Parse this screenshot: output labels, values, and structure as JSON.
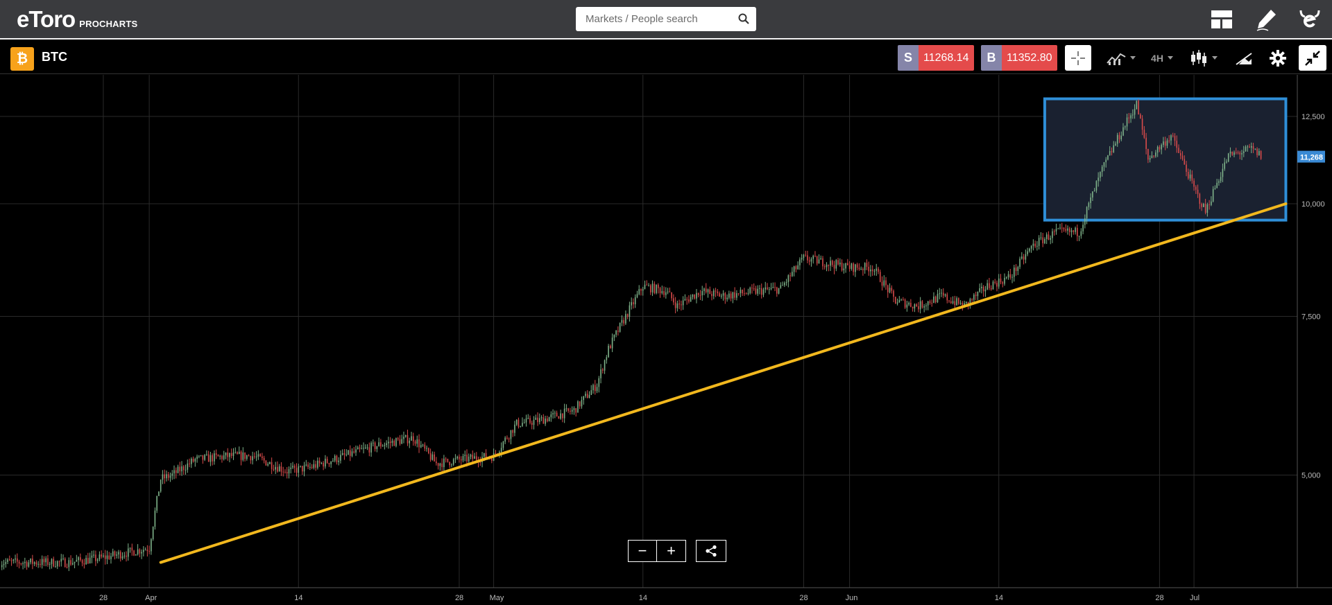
{
  "header": {
    "brand": "eToro",
    "sub": "PROCHARTS",
    "search_placeholder": "Markets / People search",
    "icons": [
      "layout-icon",
      "pencil-icon",
      "etoro-icon"
    ]
  },
  "toolbar": {
    "asset_symbol": "₿",
    "asset": "BTC",
    "sell_tag": "S",
    "sell_price": "11268.14",
    "buy_tag": "B",
    "buy_price": "11352.80",
    "timeframe": "4H",
    "icons": [
      "crosshair-icon",
      "indicators-icon",
      "candles-icon",
      "drawing-tool-icon",
      "gear-icon",
      "collapse-icon"
    ]
  },
  "colors": {
    "trendline": "#f2b81e",
    "highlight_box": "#2f8fd8",
    "up_candle": "#7fb38a",
    "down_candle": "#d84b4b",
    "price_label": "#3a8ad4",
    "grid": "#2a2a2a",
    "sell": "#e44b4b",
    "tag": "#8585a9"
  },
  "chart_data": {
    "type": "line",
    "subtype": "candlestick",
    "title": "",
    "series": [
      {
        "x": [
          "2019-03-25",
          "2019-03-28",
          "2019-04-01",
          "2019-04-02",
          "2019-04-03",
          "2019-04-05",
          "2019-04-08",
          "2019-04-10",
          "2019-04-13",
          "2019-04-15",
          "2019-04-18",
          "2019-04-21",
          "2019-04-24",
          "2019-04-26",
          "2019-04-28",
          "2019-05-01",
          "2019-05-03",
          "2019-05-05",
          "2019-05-08",
          "2019-05-10",
          "2019-05-11",
          "2019-05-12",
          "2019-05-14",
          "2019-05-16",
          "2019-05-17",
          "2019-05-19",
          "2019-05-21",
          "2019-05-24",
          "2019-05-26",
          "2019-05-28",
          "2019-05-30",
          "2019-06-01",
          "2019-06-03",
          "2019-06-05",
          "2019-06-07",
          "2019-06-09",
          "2019-06-11",
          "2019-06-13",
          "2019-06-15",
          "2019-06-17",
          "2019-06-19",
          "2019-06-21",
          "2019-06-23",
          "2019-06-26",
          "2019-06-27",
          "2019-06-29",
          "2019-07-01",
          "2019-07-02",
          "2019-07-04",
          "2019-07-06",
          "2019-07-07"
        ],
        "values": [
          4000,
          4050,
          4150,
          4950,
          5000,
          5200,
          5250,
          5250,
          5050,
          5100,
          5250,
          5400,
          5500,
          5150,
          5200,
          5250,
          5700,
          5750,
          5900,
          6300,
          6900,
          7300,
          8100,
          8000,
          7700,
          8000,
          7900,
          8000,
          8050,
          8700,
          8600,
          8500,
          8500,
          7800,
          7700,
          7900,
          7700,
          8100,
          8300,
          9000,
          9300,
          9300,
          10900,
          12900,
          11200,
          11900,
          10400,
          9800,
          11300,
          11500,
          11268
        ]
      },
      {
        "name": "",
        "x": [
          "2019-04-02",
          "2019-07-09"
        ],
        "values": [
          4000,
          10000
        ]
      }
    ],
    "xlabel": "",
    "ylabel": "",
    "x_ticks": [
      "28",
      "Apr",
      "14",
      "28",
      "May",
      "14",
      "28",
      "Jun",
      "14",
      "28",
      "Jul"
    ],
    "y_ticks": [
      "5,000",
      "7,500",
      "10,000",
      "12,500"
    ],
    "ylim": [
      3750,
      13900
    ],
    "y_scale": "log",
    "xlim": [
      "2019-03-19",
      "2019-07-10"
    ],
    "current_price_label": "11,268",
    "current_price": 11268,
    "highlight": {
      "x": [
        "2019-06-18",
        "2019-07-09"
      ],
      "y": [
        9590,
        12800
      ]
    },
    "grid": true,
    "legend": "none"
  },
  "zoom": {
    "minus": "−",
    "plus": "+"
  }
}
